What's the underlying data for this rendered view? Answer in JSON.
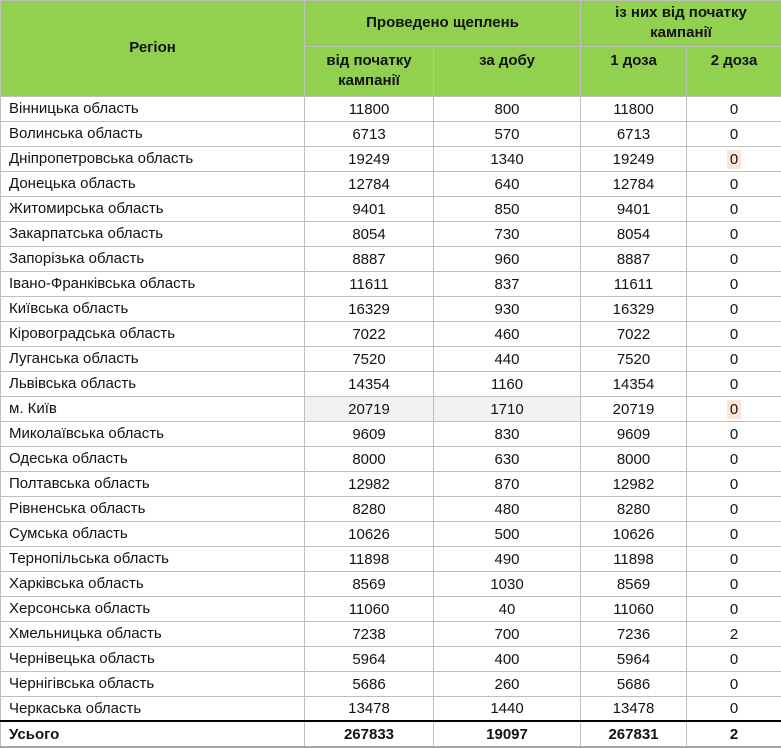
{
  "colors": {
    "header-green": "#92D050",
    "grid-line": "#bfbfbf",
    "shaded-gray": "#f2f2f2",
    "highlight-peach": "#fbe5d6"
  },
  "table": {
    "header": {
      "region": "Регіон",
      "group1": "Проведено щеплень",
      "group2": "із них від початку кампанії",
      "col_total": "від початку кампанії",
      "col_per_day": "за добу",
      "col_dose1": "1 доза",
      "col_dose2": "2 доза"
    },
    "rows": [
      {
        "region": "Вінницька область",
        "total": "11800",
        "per_day": "800",
        "dose1": "11800",
        "dose2": "0"
      },
      {
        "region": "Волинська область",
        "total": "6713",
        "per_day": "570",
        "dose1": "6713",
        "dose2": "0"
      },
      {
        "region": "Дніпропетровська область",
        "total": "19249",
        "per_day": "1340",
        "dose1": "19249",
        "dose2": "0",
        "highlight_dose2": true
      },
      {
        "region": "Донецька область",
        "total": "12784",
        "per_day": "640",
        "dose1": "12784",
        "dose2": "0"
      },
      {
        "region": "Житомирська область",
        "total": "9401",
        "per_day": "850",
        "dose1": "9401",
        "dose2": "0"
      },
      {
        "region": "Закарпатська область",
        "total": "8054",
        "per_day": "730",
        "dose1": "8054",
        "dose2": "0"
      },
      {
        "region": "Запорізька область",
        "total": "8887",
        "per_day": "960",
        "dose1": "8887",
        "dose2": "0"
      },
      {
        "region": "Івано-Франківська область",
        "total": "11611",
        "per_day": "837",
        "dose1": "11611",
        "dose2": "0"
      },
      {
        "region": "Київська область",
        "total": "16329",
        "per_day": "930",
        "dose1": "16329",
        "dose2": "0"
      },
      {
        "region": "Кіровоградська область",
        "total": "7022",
        "per_day": "460",
        "dose1": "7022",
        "dose2": "0"
      },
      {
        "region": "Луганська область",
        "total": "7520",
        "per_day": "440",
        "dose1": "7520",
        "dose2": "0"
      },
      {
        "region": "Львівська область",
        "total": "14354",
        "per_day": "1160",
        "dose1": "14354",
        "dose2": "0"
      },
      {
        "region": "м. Київ",
        "total": "20719",
        "per_day": "1710",
        "dose1": "20719",
        "dose2": "0",
        "shaded": true,
        "highlight_dose2": true
      },
      {
        "region": "Миколаївська область",
        "total": "9609",
        "per_day": "830",
        "dose1": "9609",
        "dose2": "0"
      },
      {
        "region": "Одеська область",
        "total": "8000",
        "per_day": "630",
        "dose1": "8000",
        "dose2": "0"
      },
      {
        "region": "Полтавська область",
        "total": "12982",
        "per_day": "870",
        "dose1": "12982",
        "dose2": "0"
      },
      {
        "region": "Рівненська область",
        "total": "8280",
        "per_day": "480",
        "dose1": "8280",
        "dose2": "0"
      },
      {
        "region": "Сумська область",
        "total": "10626",
        "per_day": "500",
        "dose1": "10626",
        "dose2": "0"
      },
      {
        "region": "Тернопільська область",
        "total": "11898",
        "per_day": "490",
        "dose1": "11898",
        "dose2": "0"
      },
      {
        "region": "Харківська область",
        "total": "8569",
        "per_day": "1030",
        "dose1": "8569",
        "dose2": "0"
      },
      {
        "region": "Херсонська область",
        "total": "11060",
        "per_day": "40",
        "dose1": "11060",
        "dose2": "0"
      },
      {
        "region": "Хмельницька область",
        "total": "7238",
        "per_day": "700",
        "dose1": "7236",
        "dose2": "2"
      },
      {
        "region": "Чернівецька область",
        "total": "5964",
        "per_day": "400",
        "dose1": "5964",
        "dose2": "0"
      },
      {
        "region": "Чернігівська область",
        "total": "5686",
        "per_day": "260",
        "dose1": "5686",
        "dose2": "0"
      },
      {
        "region": "Черкаська область",
        "total": "13478",
        "per_day": "1440",
        "dose1": "13478",
        "dose2": "0"
      }
    ],
    "totals": {
      "label": "Усього",
      "total": "267833",
      "per_day": "19097",
      "dose1": "267831",
      "dose2": "2"
    }
  }
}
